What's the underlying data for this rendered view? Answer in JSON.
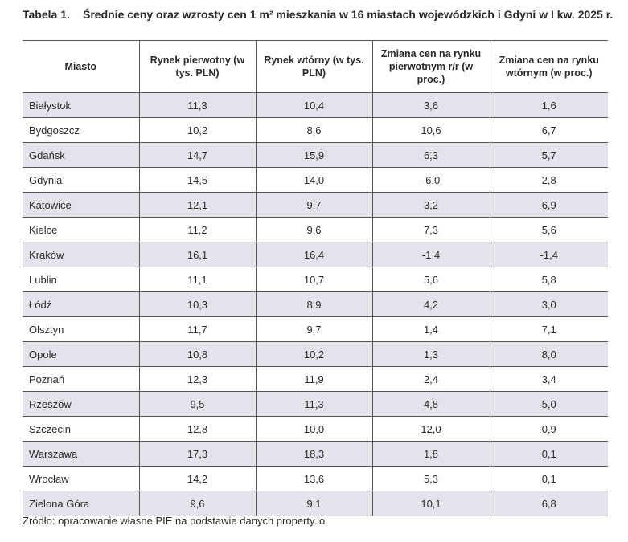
{
  "title": {
    "label": "Tabela 1.",
    "text": "Średnie ceny oraz wzrosty cen 1 m² mieszkania w 16 miastach wojewódzkich i Gdyni w I kw. 2025 r."
  },
  "table": {
    "headers": [
      "Miasto",
      "Rynek pierwotny (w tys. PLN)",
      "Rynek wtórny (w tys. PLN)",
      "Zmiana cen na rynku pierwotnym r/r (w proc.)",
      "Zmiana cen na rynku wtórnym (w proc.)"
    ],
    "rows": [
      [
        "Białystok",
        "11,3",
        "10,4",
        "3,6",
        "1,6"
      ],
      [
        "Bydgoszcz",
        "10,2",
        "8,6",
        "10,6",
        "6,7"
      ],
      [
        "Gdańsk",
        "14,7",
        "15,9",
        "6,3",
        "5,7"
      ],
      [
        "Gdynia",
        "14,5",
        "14,0",
        "-6,0",
        "2,8"
      ],
      [
        "Katowice",
        "12,1",
        "9,7",
        "3,2",
        "6,9"
      ],
      [
        "Kielce",
        "11,2",
        "9,6",
        "7,3",
        "5,6"
      ],
      [
        "Kraków",
        "16,1",
        "16,4",
        "-1,4",
        "-1,4"
      ],
      [
        "Lublin",
        "11,1",
        "10,7",
        "5,6",
        "5,8"
      ],
      [
        "Łódź",
        "10,3",
        "8,9",
        "4,2",
        "3,0"
      ],
      [
        "Olsztyn",
        "11,7",
        "9,7",
        "1,4",
        "7,1"
      ],
      [
        "Opole",
        "10,8",
        "10,2",
        "1,3",
        "8,0"
      ],
      [
        "Poznań",
        "12,3",
        "11,9",
        "2,4",
        "3,4"
      ],
      [
        "Rzeszów",
        "9,5",
        "11,3",
        "4,8",
        "5,0"
      ],
      [
        "Szczecin",
        "12,8",
        "10,0",
        "12,0",
        "0,9"
      ],
      [
        "Warszawa",
        "17,3",
        "18,3",
        "1,8",
        "0,1"
      ],
      [
        "Wrocław",
        "14,2",
        "13,6",
        "5,3",
        "0,1"
      ],
      [
        "Zielona Góra",
        "9,6",
        "9,1",
        "10,1",
        "6,8"
      ]
    ]
  },
  "source": "Źródło: opracowanie własne PIE na podstawie danych property.io."
}
